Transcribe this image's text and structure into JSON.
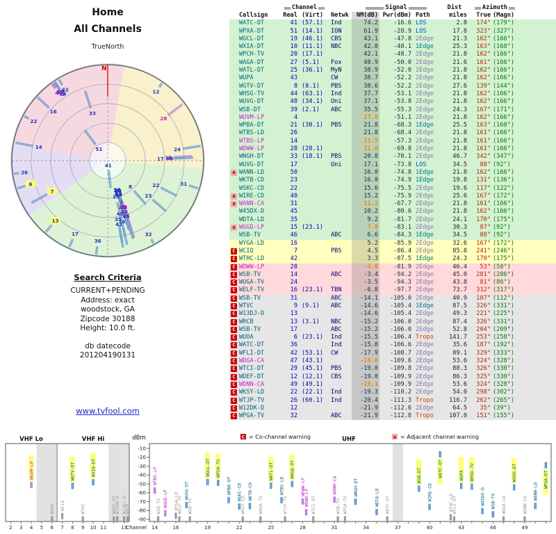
{
  "left_panel": {
    "title1": "Home",
    "title2": "All Channels",
    "north_label": "TrueNorth",
    "n_marker": "N",
    "search_criteria": {
      "heading": "Search Criteria",
      "lines": [
        "CURRENT+PENDING",
        "Address: exact",
        "woodstock, GA",
        "Zipcode 30188",
        "Height: 10.0 ft."
      ],
      "datecode_label": "db datecode",
      "datecode": "201204190131"
    },
    "link": "www.tvfool.com"
  },
  "table": {
    "group_headers": {
      "channel": "Channel",
      "signal": "Signal",
      "dist": "Dist",
      "azimuth": "Azimuth"
    },
    "columns": [
      "Callsign",
      "Real",
      "(Virt)",
      "Netwk",
      "NM(dB)",
      "Pwr(dBm)",
      "Path",
      "miles",
      "True",
      "(Magn)"
    ]
  },
  "legend": {
    "c_symbol": "C",
    "c_label": "= Co-channel warning",
    "a_symbol": "a",
    "a_label": "= Adjacent channel warning"
  },
  "bottom_chart": {
    "ylabel": "dBm",
    "xlabel": "Channel",
    "band_labels": [
      "VHF Lo",
      "VHF Hi",
      "UHF"
    ],
    "y_ticks": [
      -10,
      -20,
      -30,
      -40,
      -50,
      -60,
      -70,
      -80,
      -90
    ],
    "vhf_ticks": [
      2,
      3,
      4,
      5,
      6,
      7,
      8,
      9,
      10,
      11,
      13
    ],
    "uhf_ticks": [
      14,
      16,
      19,
      22,
      25,
      28,
      31,
      34,
      37,
      40,
      43,
      46,
      49
    ]
  },
  "colors": {
    "zone_green": "#d2f2d2",
    "zone_yellow": "#ffffbe",
    "zone_pink": "#ffd9dc",
    "zone_gray": "#e6e6e6",
    "warn_c_bg": "#cc0000",
    "warn_a_bg": "#f2aaaa",
    "bar": "#2b6cb8",
    "bar_lp": "#b04fc0",
    "label_teal": "#006677",
    "label_lp": "#bb22bb",
    "label_gray": "#9a9a9a",
    "highlight": "#ffff66",
    "true_az": "#bb2200",
    "magn_az": "#007700"
  },
  "radar_wedges": [
    {
      "from": 280,
      "to": 10,
      "color": "#f6d9e0"
    },
    {
      "from": 10,
      "to": 95,
      "color": "#f8f1cc"
    },
    {
      "from": 95,
      "to": 235,
      "color": "#def3d6"
    },
    {
      "from": 235,
      "to": 280,
      "color": "#e5ddf3"
    }
  ],
  "stations": [
    {
      "w": "",
      "cs": "WATC-DT",
      "ch": 41,
      "virt": "(57.1)",
      "net": "Ind",
      "nm": 74.2,
      "pwr": -16.6,
      "path": "LOS",
      "mi": 2.8,
      "azn": 174,
      "magn": 179,
      "zone": "green",
      "hl": 1
    },
    {
      "w": "",
      "cs": "WPXA-DT",
      "ch": 51,
      "virt": "(14.1)",
      "net": "ION",
      "nm": 61.9,
      "pwr": -28.9,
      "path": "LOS",
      "mi": 17.8,
      "azn": 323,
      "magn": 327,
      "zone": "green",
      "hl": 1
    },
    {
      "w": "",
      "cs": "WGCL-DT",
      "ch": 19,
      "virt": "(46.1)",
      "net": "CBS",
      "nm": 43.1,
      "pwr": -47.8,
      "path": "2Edge",
      "mi": 21.3,
      "azn": 162,
      "magn": 166,
      "zone": "green",
      "hl": 1
    },
    {
      "w": "",
      "cs": "WXIA-DT",
      "ch": 10,
      "virt": "(11.1)",
      "net": "NBC",
      "nm": 42.8,
      "pwr": -48.1,
      "path": "1Edge",
      "mi": 25.3,
      "azn": 163,
      "magn": 168,
      "zone": "green",
      "hl": 1
    },
    {
      "w": "",
      "cs": "WPCH-TV",
      "ch": 20,
      "virt": "(17.1)",
      "net": "",
      "nm": 42.1,
      "pwr": -48.7,
      "path": "2Edge",
      "mi": 21.8,
      "azn": 162,
      "magn": 166,
      "zone": "green",
      "hl": 1
    },
    {
      "w": "",
      "cs": "WAGA-DT",
      "ch": 27,
      "virt": "(5.1)",
      "net": "Fox",
      "nm": 40.9,
      "pwr": -50.0,
      "path": "2Edge",
      "mi": 21.6,
      "azn": 161,
      "magn": 166,
      "zone": "green",
      "hl": 1
    },
    {
      "w": "",
      "cs": "WATL-DT",
      "ch": 25,
      "virt": "(36.1)",
      "net": "MyN",
      "nm": 38.9,
      "pwr": -52.0,
      "path": "2Edge",
      "mi": 21.8,
      "azn": 162,
      "magn": 166,
      "zone": "green",
      "hl": 1
    },
    {
      "w": "",
      "cs": "WUPA",
      "ch": 43,
      "virt": "",
      "net": "CW",
      "nm": 38.7,
      "pwr": -52.2,
      "path": "2Edge",
      "mi": 21.8,
      "azn": 162,
      "magn": 166,
      "zone": "green",
      "hl": 1
    },
    {
      "w": "",
      "cs": "WGTV-DT",
      "ch": 8,
      "virt": "(8.1)",
      "net": "PBS",
      "nm": 38.6,
      "pwr": -52.2,
      "path": "2Edge",
      "m i": 0,
      "mi": 27.6,
      "azn": 139,
      "magn": 144,
      "zone": "green",
      "hl": 1
    },
    {
      "w": "",
      "cs": "WHSG-TV",
      "ch": 44,
      "virt": "(63.1)",
      "net": "Ind",
      "nm": 37.7,
      "pwr": -53.1,
      "path": "2Edge",
      "mi": 21.8,
      "azn": 162,
      "magn": 166,
      "zone": "green",
      "hl": 1
    },
    {
      "w": "",
      "cs": "WUVG-DT",
      "ch": 48,
      "virt": "(34.1)",
      "net": "Uni",
      "nm": 37.1,
      "pwr": -53.8,
      "path": "2Edge",
      "mi": 21.8,
      "azn": 162,
      "magn": 166,
      "zone": "green",
      "hl": 1
    },
    {
      "w": "",
      "cs": "WSB-DT",
      "ch": 39,
      "virt": "(2.1)",
      "net": "ABC",
      "nm": 35.5,
      "pwr": -55.3,
      "path": "2Edge",
      "mi": 24.3,
      "azn": 167,
      "magn": 171,
      "zone": "green",
      "hl": 1
    },
    {
      "w": "",
      "cs": "WUVM-LP",
      "ch": 4,
      "virt": "",
      "net": "",
      "nm": 27.8,
      "pwr": -51.1,
      "path": "2Edge",
      "mi": 21.8,
      "azn": 162,
      "magn": 166,
      "zone": "green",
      "lp": 1,
      "hl": 1
    },
    {
      "w": "",
      "cs": "WPBA-DT",
      "ch": 21,
      "virt": "(30.1)",
      "net": "PBS",
      "nm": 21.8,
      "pwr": -68.3,
      "path": "1Edge",
      "mi": 25.5,
      "azn": 163,
      "magn": 168,
      "zone": "green"
    },
    {
      "w": "",
      "cs": "WTBS-LD",
      "ch": 26,
      "virt": "",
      "net": "",
      "nm": 21.8,
      "pwr": -68.4,
      "path": "2Edge",
      "mi": 21.8,
      "azn": 161,
      "magn": 166,
      "zone": "green"
    },
    {
      "w": "",
      "cs": "WTBS-LP",
      "ch": 14,
      "virt": "",
      "net": "",
      "nm": 21.5,
      "pwr": -57.3,
      "path": "2Edge",
      "mi": 21.8,
      "azn": 161,
      "magn": 166,
      "zone": "green",
      "lp": 1
    },
    {
      "w": "",
      "cs": "WDWW-LP",
      "ch": 28,
      "virt": "(28.1)",
      "net": "",
      "nm": 21.0,
      "pwr": -69.8,
      "path": "2Edge",
      "mi": 21.8,
      "azn": 161,
      "magn": 166,
      "zone": "green",
      "lp": 1
    },
    {
      "w": "",
      "cs": "WNGH-DT",
      "ch": 33,
      "virt": "(18.1)",
      "net": "PBS",
      "nm": 20.8,
      "pwr": -70.1,
      "path": "2Edge",
      "mi": 46.7,
      "azn": 342,
      "magn": 347,
      "zone": "green"
    },
    {
      "w": "",
      "cs": "WUVG-DT",
      "ch": 17,
      "virt": "",
      "net": "Uni",
      "nm": 17.1,
      "pwr": -73.8,
      "path": "LOS",
      "mi": 34.5,
      "azn": 88,
      "magn": 92,
      "zone": "green"
    },
    {
      "w": "a",
      "cs": "WANN-LD",
      "ch": 50,
      "virt": "",
      "net": "",
      "nm": 16.0,
      "pwr": -74.8,
      "path": "1Edge",
      "mi": 21.8,
      "azn": 162,
      "magn": 166,
      "zone": "green"
    },
    {
      "w": "",
      "cs": "WKTB-CD",
      "ch": 23,
      "virt": "",
      "net": "",
      "nm": 16.0,
      "pwr": -74.9,
      "path": "1Edge",
      "mi": 19.8,
      "azn": 131,
      "magn": 136,
      "zone": "green"
    },
    {
      "w": "",
      "cs": "WSKC-CD",
      "ch": 22,
      "virt": "",
      "net": "",
      "nm": 15.6,
      "pwr": -75.5,
      "path": "2Edge",
      "mi": 19.6,
      "azn": 117,
      "magn": 122,
      "zone": "green"
    },
    {
      "w": "a",
      "cs": "WIRE-CD",
      "ch": 40,
      "virt": "",
      "net": "",
      "nm": 15.2,
      "pwr": -75.9,
      "path": "2Edge",
      "mi": 25.6,
      "azn": 167,
      "magn": 172,
      "zone": "green"
    },
    {
      "w": "a",
      "cs": "WANN-CA",
      "ch": 31,
      "virt": "",
      "net": "",
      "nm": 11.2,
      "pwr": -67.7,
      "path": "2Edge",
      "mi": 21.8,
      "azn": 161,
      "magn": 166,
      "zone": "green",
      "lp": 1
    },
    {
      "w": "",
      "cs": "W45DX-D",
      "ch": 45,
      "virt": "",
      "net": "",
      "nm": 10.2,
      "pwr": -80.6,
      "path": "2Edge",
      "mi": 21.8,
      "azn": 162,
      "magn": 166,
      "zone": "green"
    },
    {
      "w": "",
      "cs": "WDTA-LD",
      "ch": 35,
      "virt": "",
      "net": "",
      "nm": 9.2,
      "pwr": -81.7,
      "path": "2Edge",
      "mi": 24.1,
      "azn": 170,
      "magn": 175,
      "zone": "green"
    },
    {
      "w": "a",
      "cs": "WGGD-LP",
      "ch": 15,
      "virt": "(23.1)",
      "net": "",
      "nm": 7.8,
      "pwr": -83.1,
      "path": "2Edge",
      "mi": 30.3,
      "azn": 87,
      "magn": 92,
      "zone": "green",
      "lp": 1
    },
    {
      "w": "",
      "cs": "WSB-TV",
      "ch": 46,
      "virt": "",
      "net": "ABC",
      "nm": 6.6,
      "pwr": -84.3,
      "path": "1Edge",
      "mi": 34.5,
      "azn": 88,
      "magn": 92,
      "zone": "green"
    },
    {
      "w": "",
      "cs": "WYGA-LD",
      "ch": 16,
      "virt": "",
      "net": "",
      "nm": 5.2,
      "pwr": -85.9,
      "path": "2Edge",
      "mi": 32.6,
      "azn": 167,
      "magn": 172,
      "zone": "yellow"
    },
    {
      "w": "C",
      "cs": "WCIQ",
      "ch": 7,
      "virt": "",
      "net": "PBS",
      "nm": 4.5,
      "pwr": -86.4,
      "path": "2Edge",
      "mi": 85.8,
      "azn": 241,
      "magn": 246,
      "zone": "yellow",
      "rhl": 1
    },
    {
      "w": "C",
      "cs": "WTHC-LD",
      "ch": 42,
      "virt": "",
      "net": "",
      "nm": 3.3,
      "pwr": -87.5,
      "path": "1Edge",
      "mi": 24.3,
      "azn": 170,
      "magn": 175,
      "zone": "yellow"
    },
    {
      "w": "C",
      "cs": "WDWW-LP",
      "ch": 28,
      "virt": "",
      "net": "",
      "nm": -3.0,
      "pwr": -81.9,
      "path": "2Edge",
      "mi": 46.4,
      "azn": 53,
      "magn": 58,
      "zone": "pink",
      "lp": 1
    },
    {
      "w": "C",
      "cs": "WSB-TV",
      "ch": 14,
      "virt": "",
      "net": "ABC",
      "nm": -3.4,
      "pwr": -94.2,
      "path": "2Edge",
      "mi": 45.0,
      "azn": 281,
      "magn": 286,
      "zone": "pink"
    },
    {
      "w": "C",
      "cs": "WUGA-TV",
      "ch": 24,
      "virt": "",
      "net": "",
      "nm": -3.5,
      "pwr": -94.3,
      "path": "2Edge",
      "mi": 43.8,
      "azn": 81,
      "magn": 86,
      "zone": "pink"
    },
    {
      "w": "C",
      "cs": "WELF-TV",
      "ch": 16,
      "virt": "(23.1)",
      "net": "TBN",
      "nm": -6.8,
      "pwr": -97.7,
      "path": "2Edge",
      "mi": 73.7,
      "azn": 312,
      "magn": 317,
      "zone": "pink"
    },
    {
      "w": "C",
      "cs": "WSB-TV",
      "ch": 31,
      "virt": "",
      "net": "ABC",
      "nm": -14.1,
      "pwr": -105.0,
      "path": "2Edge",
      "mi": 40.9,
      "azn": 107,
      "magn": 112,
      "zone": "gray"
    },
    {
      "w": "C",
      "cs": "WTVC",
      "ch": 9,
      "virt": "(9.1)",
      "net": "ABC",
      "nm": -14.6,
      "pwr": -105.4,
      "path": "1Edge",
      "mi": 87.5,
      "azn": 326,
      "magn": 331,
      "zone": "gray"
    },
    {
      "w": "C",
      "cs": "W13DJ-D",
      "ch": 13,
      "virt": "",
      "net": "",
      "nm": -14.6,
      "pwr": -105.4,
      "path": "2Edge",
      "mi": 49.3,
      "azn": 221,
      "magn": 225,
      "zone": "gray",
      "rhl": 1
    },
    {
      "w": "C",
      "cs": "WRCB",
      "ch": 13,
      "virt": "(3.1)",
      "net": "NBC",
      "nm": -15.2,
      "pwr": -106.0,
      "path": "2Edge",
      "mi": 87.4,
      "azn": 326,
      "magn": 331,
      "zone": "gray"
    },
    {
      "w": "C",
      "cs": "WSB-TV",
      "ch": 17,
      "virt": "",
      "net": "ABC",
      "nm": -15.2,
      "pwr": -106.0,
      "path": "2Edge",
      "mi": 52.8,
      "azn": 204,
      "magn": 209,
      "zone": "gray"
    },
    {
      "w": "C",
      "cs": "WUOA",
      "ch": 6,
      "virt": "(23.1)",
      "net": "Ind",
      "nm": -15.5,
      "pwr": -106.4,
      "path": "Tropo",
      "mi": 141.7,
      "azn": 253,
      "magn": 258,
      "zone": "gray",
      "rhl": 1
    },
    {
      "w": "C",
      "cs": "WATC-DT",
      "ch": 36,
      "virt": "",
      "net": "Ind",
      "nm": -15.8,
      "pwr": -106.6,
      "path": "2Edge",
      "mi": 35.6,
      "azn": 187,
      "magn": 192,
      "zone": "gray"
    },
    {
      "w": "C",
      "cs": "WFLI-DT",
      "ch": 42,
      "virt": "(53.1)",
      "net": "CW",
      "nm": -17.9,
      "pwr": -108.7,
      "path": "2Edge",
      "mi": 89.1,
      "azn": 329,
      "magn": 333,
      "zone": "gray"
    },
    {
      "w": "C",
      "cs": "WDGA-CA",
      "ch": 47,
      "virt": "(43.1)",
      "net": "",
      "nm": -18.8,
      "pwr": -109.6,
      "path": "2Edge",
      "mi": 53.6,
      "azn": 324,
      "magn": 328,
      "zone": "gray",
      "lp": 1
    },
    {
      "w": "C",
      "cs": "WTCI-DT",
      "ch": 29,
      "virt": "(45.1)",
      "net": "PBS",
      "nm": -19.0,
      "pwr": -109.8,
      "path": "2Edge",
      "mi": 88.3,
      "azn": 326,
      "magn": 330,
      "zone": "gray"
    },
    {
      "w": "C",
      "cs": "WDEF-DT",
      "ch": 12,
      "virt": "(12.1)",
      "net": "CBS",
      "nm": -19.0,
      "pwr": -109.9,
      "path": "2Edge",
      "mi": 86.3,
      "azn": 325,
      "magn": 330,
      "zone": "gray"
    },
    {
      "w": "C",
      "cs": "WDNN-CA",
      "ch": 49,
      "virt": "(49.1)",
      "net": "",
      "nm": -19.1,
      "pwr": -109.9,
      "path": "2Edge",
      "mi": 53.6,
      "azn": 324,
      "magn": 328,
      "zone": "gray",
      "lp": 1
    },
    {
      "w": "C",
      "cs": "WKSY-LD",
      "ch": 22,
      "virt": "(22.1)",
      "net": "Ind",
      "nm": -19.3,
      "pwr": -110.2,
      "path": "2Edge",
      "mi": 54.0,
      "azn": 298,
      "magn": 302,
      "zone": "gray"
    },
    {
      "w": "C",
      "cs": "WTJP-TV",
      "ch": 26,
      "virt": "(60.1)",
      "net": "Ind",
      "nm": -20.4,
      "pwr": -111.3,
      "path": "Tropo",
      "mi": 116.7,
      "azn": 262,
      "magn": 265,
      "zone": "gray"
    },
    {
      "w": "C",
      "cs": "W12DK-D",
      "ch": 12,
      "virt": "",
      "net": "",
      "nm": -21.9,
      "pwr": -112.6,
      "path": "2Edge",
      "mi": 64.5,
      "azn": 35,
      "magn": 39,
      "zone": "gray"
    },
    {
      "w": "C",
      "cs": "WPGA-TV",
      "ch": 32,
      "virt": "",
      "net": "ABC",
      "nm": -21.9,
      "pwr": -112.8,
      "path": "Tropo",
      "mi": 107.0,
      "azn": 151,
      "magn": 155,
      "zone": "gray"
    }
  ]
}
